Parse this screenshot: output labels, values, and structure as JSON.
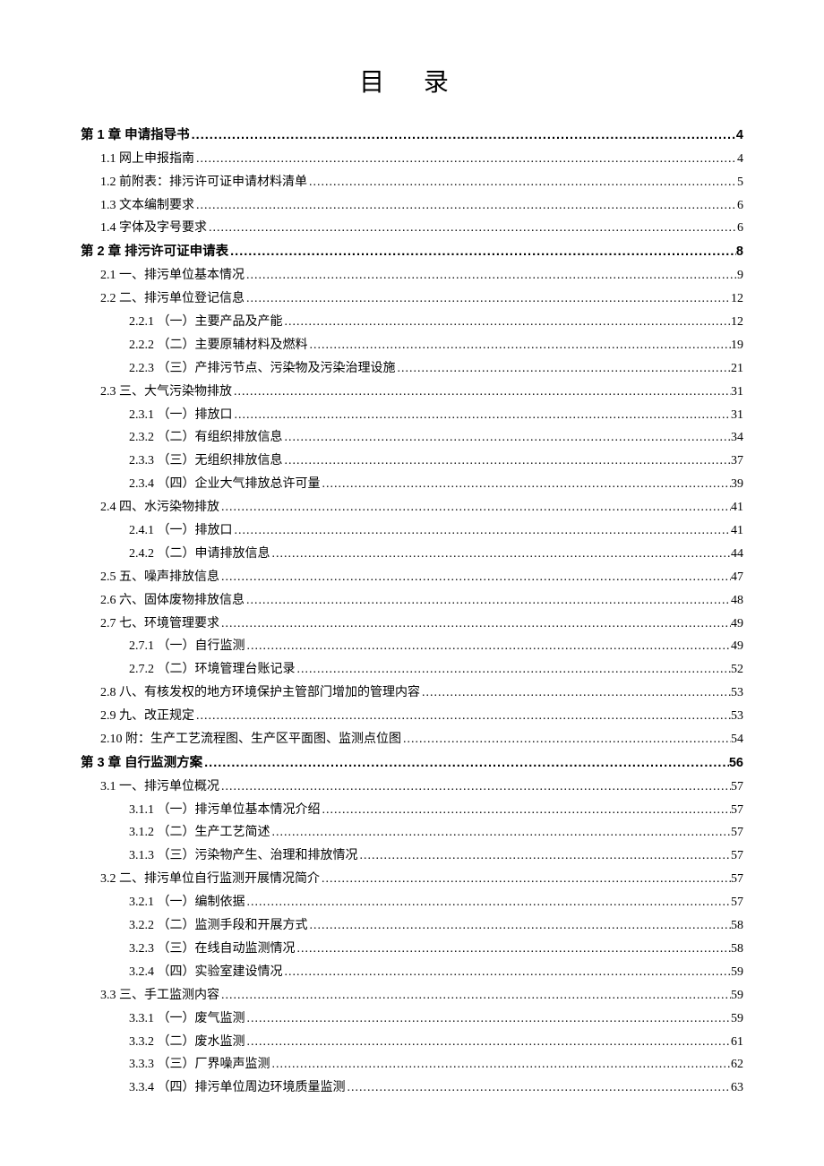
{
  "title": "目 录",
  "entries": [
    {
      "level": 0,
      "prefix": "第 1 章",
      "label": " 申请指导书",
      "page": "4"
    },
    {
      "level": 1,
      "prefix": "1.1",
      "label": " 网上申报指南 ",
      "page": "4"
    },
    {
      "level": 1,
      "prefix": "1.2",
      "label": " 前附表：排污许可证申请材料清单",
      "page": "5"
    },
    {
      "level": 1,
      "prefix": "1.3",
      "label": " 文本编制要求 ",
      "page": "6"
    },
    {
      "level": 1,
      "prefix": "1.4",
      "label": " 字体及字号要求 ",
      "page": "6"
    },
    {
      "level": 0,
      "prefix": "第 2 章",
      "label": " 排污许可证申请表",
      "page": "8"
    },
    {
      "level": 1,
      "prefix": "2.1",
      "label": " 一、排污单位基本情况 ",
      "page": "9"
    },
    {
      "level": 1,
      "prefix": "2.2",
      "label": " 二、排污单位登记信息 ",
      "page": "12"
    },
    {
      "level": 2,
      "prefix": "2.2.1",
      "label": " （一）主要产品及产能 ",
      "page": "12"
    },
    {
      "level": 2,
      "prefix": "2.2.2",
      "label": " （二）主要原辅材料及燃料 ",
      "page": "19"
    },
    {
      "level": 2,
      "prefix": "2.2.3",
      "label": " （三）产排污节点、污染物及污染治理设施 ",
      "page": "21"
    },
    {
      "level": 1,
      "prefix": "2.3",
      "label": " 三、大气污染物排放 ",
      "page": "31"
    },
    {
      "level": 2,
      "prefix": "2.3.1",
      "label": " （一）排放口",
      "page": "31"
    },
    {
      "level": 2,
      "prefix": "2.3.2",
      "label": " （二）有组织排放信息 ",
      "page": "34"
    },
    {
      "level": 2,
      "prefix": "2.3.3",
      "label": " （三）无组织排放信息 ",
      "page": "37"
    },
    {
      "level": 2,
      "prefix": "2.3.4",
      "label": " （四）企业大气排放总许可量 ",
      "page": "39"
    },
    {
      "level": 1,
      "prefix": "2.4",
      "label": " 四、水污染物排放 ",
      "page": "41"
    },
    {
      "level": 2,
      "prefix": "2.4.1",
      "label": " （一）排放口",
      "page": "41"
    },
    {
      "level": 2,
      "prefix": "2.4.2",
      "label": " （二）申请排放信息 ",
      "page": "44"
    },
    {
      "level": 1,
      "prefix": "2.5",
      "label": " 五、噪声排放信息 ",
      "page": "47"
    },
    {
      "level": 1,
      "prefix": "2.6",
      "label": " 六、固体废物排放信息 ",
      "page": "48"
    },
    {
      "level": 1,
      "prefix": "2.7",
      "label": " 七、环境管理要求 ",
      "page": "49"
    },
    {
      "level": 2,
      "prefix": "2.7.1",
      "label": " （一）自行监测 ",
      "page": "49"
    },
    {
      "level": 2,
      "prefix": "2.7.2",
      "label": " （二）环境管理台账记录 ",
      "page": "52"
    },
    {
      "level": 1,
      "prefix": "2.8",
      "label": " 八、有核发权的地方环境保护主管部门增加的管理内容",
      "page": "53"
    },
    {
      "level": 1,
      "prefix": "2.9",
      "label": " 九、改正规定 ",
      "page": "53"
    },
    {
      "level": 1,
      "prefix": "2.10",
      "label": " 附：生产工艺流程图、生产区平面图、监测点位图",
      "page": "54"
    },
    {
      "level": 0,
      "prefix": "第 3 章",
      "label": " 自行监测方案",
      "page": "56"
    },
    {
      "level": 1,
      "prefix": "3.1",
      "label": " 一、排污单位概况 ",
      "page": "57"
    },
    {
      "level": 2,
      "prefix": "3.1.1",
      "label": " （一）排污单位基本情况介绍 ",
      "page": "57"
    },
    {
      "level": 2,
      "prefix": "3.1.2",
      "label": " （二）生产工艺简述 ",
      "page": "57"
    },
    {
      "level": 2,
      "prefix": "3.1.3",
      "label": " （三）污染物产生、治理和排放情况 ",
      "page": "57"
    },
    {
      "level": 1,
      "prefix": "3.2",
      "label": " 二、排污单位自行监测开展情况简介",
      "page": "57"
    },
    {
      "level": 2,
      "prefix": "3.2.1",
      "label": " （一）编制依据 ",
      "page": "57"
    },
    {
      "level": 2,
      "prefix": "3.2.2",
      "label": " （二）监测手段和开展方式 ",
      "page": "58"
    },
    {
      "level": 2,
      "prefix": "3.2.3",
      "label": " （三）在线自动监测情况 ",
      "page": "58"
    },
    {
      "level": 2,
      "prefix": "3.2.4",
      "label": " （四）实验室建设情况 ",
      "page": "59"
    },
    {
      "level": 1,
      "prefix": "3.3",
      "label": " 三、手工监测内容 ",
      "page": "59"
    },
    {
      "level": 2,
      "prefix": "3.3.1",
      "label": " （一）废气监测 ",
      "page": "59"
    },
    {
      "level": 2,
      "prefix": "3.3.2",
      "label": " （二）废水监测 ",
      "page": "61"
    },
    {
      "level": 2,
      "prefix": "3.3.3",
      "label": " （三）厂界噪声监测 ",
      "page": "62"
    },
    {
      "level": 2,
      "prefix": "3.3.4",
      "label": " （四）排污单位周边环境质量监测 ",
      "page": "63"
    }
  ]
}
